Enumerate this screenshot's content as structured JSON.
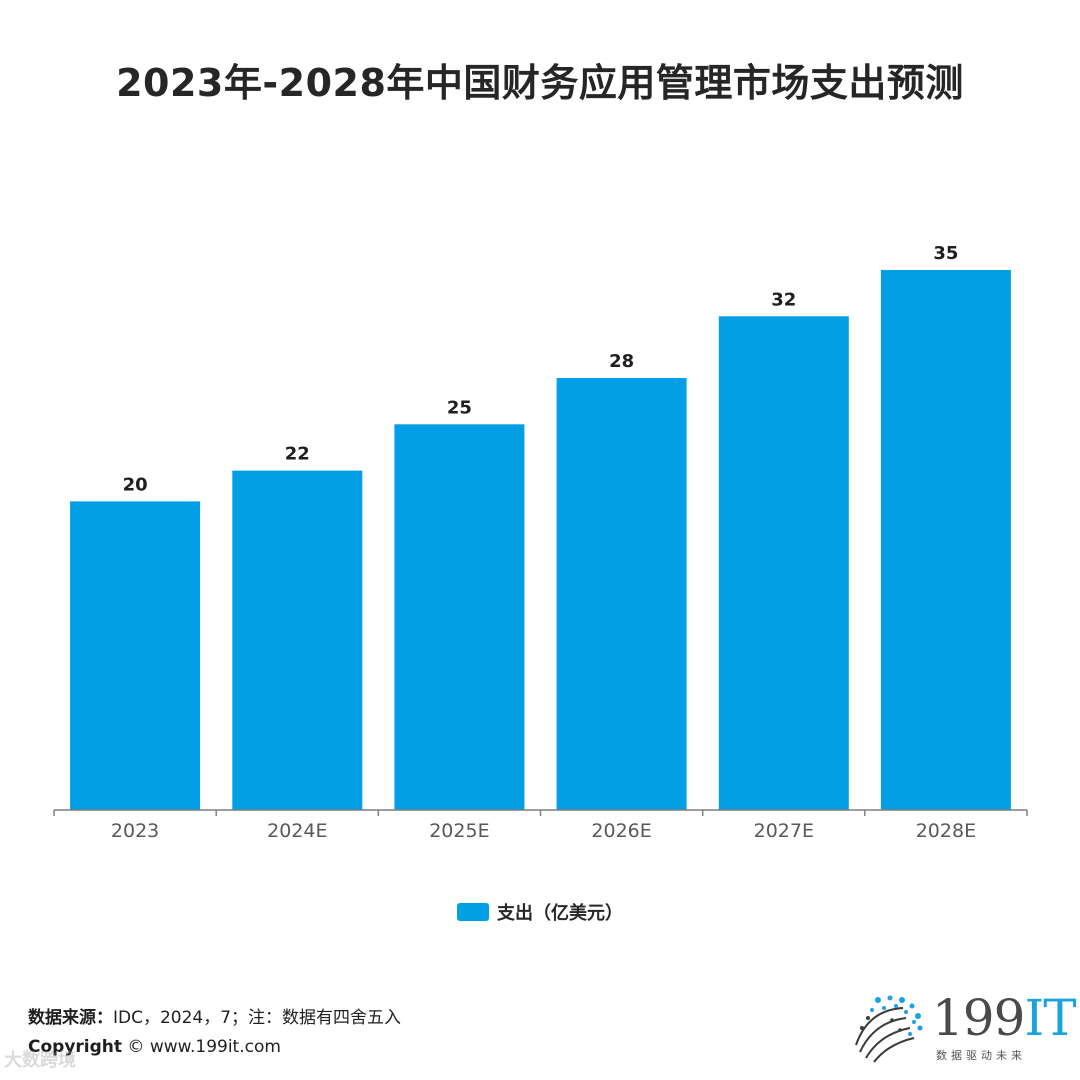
{
  "chart_data": {
    "type": "bar",
    "title": "2023年-2028年中国财务应用管理市场支出预测",
    "categories": [
      "2023",
      "2024E",
      "2025E",
      "2026E",
      "2027E",
      "2028E"
    ],
    "series": [
      {
        "name": "支出（亿美元）",
        "values": [
          20,
          22,
          25,
          28,
          32,
          35
        ],
        "color": "#039fe6"
      }
    ],
    "ylim": [
      0,
      35
    ],
    "grid": false,
    "legend": "bottom-center",
    "xlabel": "",
    "ylabel": ""
  },
  "footer": {
    "source_key": "数据来源：",
    "source_value": "IDC，2024，7；注：数据有四舍五入",
    "copyright_key": "Copyright",
    "copyright_value": " © www.199it.com"
  },
  "logo": {
    "name_main": "199",
    "name_it": "IT",
    "tagline": "数据驱动未来"
  },
  "watermark": "大数跨境"
}
